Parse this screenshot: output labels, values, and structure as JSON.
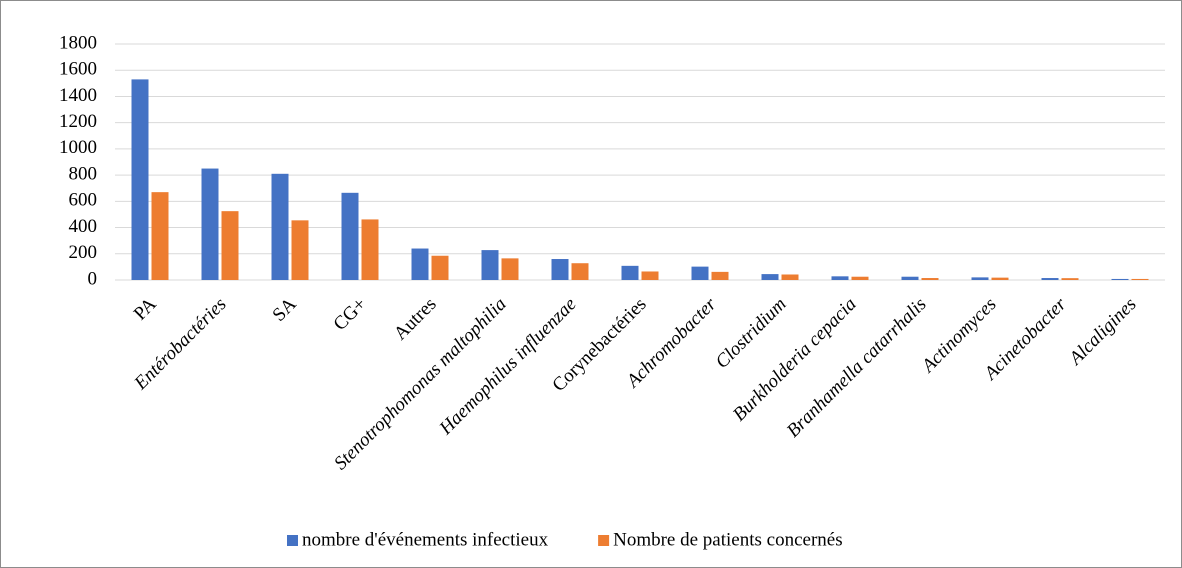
{
  "chart_data": {
    "type": "bar",
    "categories": [
      "PA",
      "Entérobactéries",
      "SA",
      "CG+",
      "Autres",
      "Stenotrophomonas maltophilia",
      "Haemophilus influenzae",
      "Corynebactéries",
      "Achromobacter",
      "Clostridium",
      "Burkholderia cepacia",
      "Branhamella catarrhalis",
      "Actinomyces",
      "Acinetobacter",
      "Alcaligines"
    ],
    "series": [
      {
        "name": "nombre d'événements infectieux",
        "color": "#4472c4",
        "values": [
          1530,
          850,
          810,
          665,
          240,
          228,
          160,
          108,
          102,
          45,
          28,
          25,
          20,
          15,
          8
        ]
      },
      {
        "name": "Nombre de patients concernés",
        "color": "#ed7d31",
        "values": [
          670,
          525,
          455,
          462,
          185,
          165,
          128,
          65,
          62,
          42,
          25,
          15,
          18,
          14,
          8
        ]
      }
    ],
    "ylim": [
      0,
      1800
    ],
    "yticks": [
      0,
      200,
      400,
      600,
      800,
      1000,
      1200,
      1400,
      1600,
      1800
    ],
    "grid": true,
    "legend": "bottom"
  }
}
